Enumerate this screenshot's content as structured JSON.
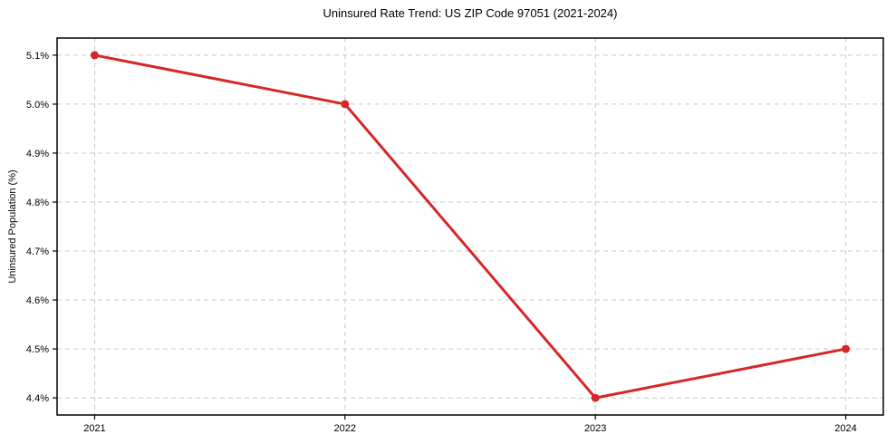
{
  "page": {
    "background": "#ffffff"
  },
  "chart_data": {
    "type": "line",
    "title": "Uninsured Rate Trend: US ZIP Code 97051 (2021-2024)",
    "xlabel": "",
    "ylabel": "Uninsured Population (%)",
    "x": [
      2021,
      2022,
      2023,
      2024
    ],
    "values": [
      5.1,
      5.0,
      4.4,
      4.5
    ],
    "xtick_labels": [
      "2021",
      "2022",
      "2023",
      "2024"
    ],
    "ytick_values": [
      4.4,
      4.5,
      4.6,
      4.7,
      4.8,
      4.9,
      5.0,
      5.1
    ],
    "ytick_labels": [
      "4.4%",
      "4.5%",
      "4.6%",
      "4.7%",
      "4.8%",
      "4.9%",
      "5.0%",
      "5.1%"
    ],
    "xlim": [
      2020.85,
      2024.15
    ],
    "ylim": [
      4.365,
      5.135
    ],
    "grid": true,
    "grid_style": "dashed",
    "legend_position": "none",
    "marker": "circle",
    "colors": {
      "line": "#d62728",
      "marker": "#d62728",
      "grid": "#c9c9c9",
      "axis": "#000000",
      "text": "#000000",
      "background": "#ffffff"
    }
  }
}
